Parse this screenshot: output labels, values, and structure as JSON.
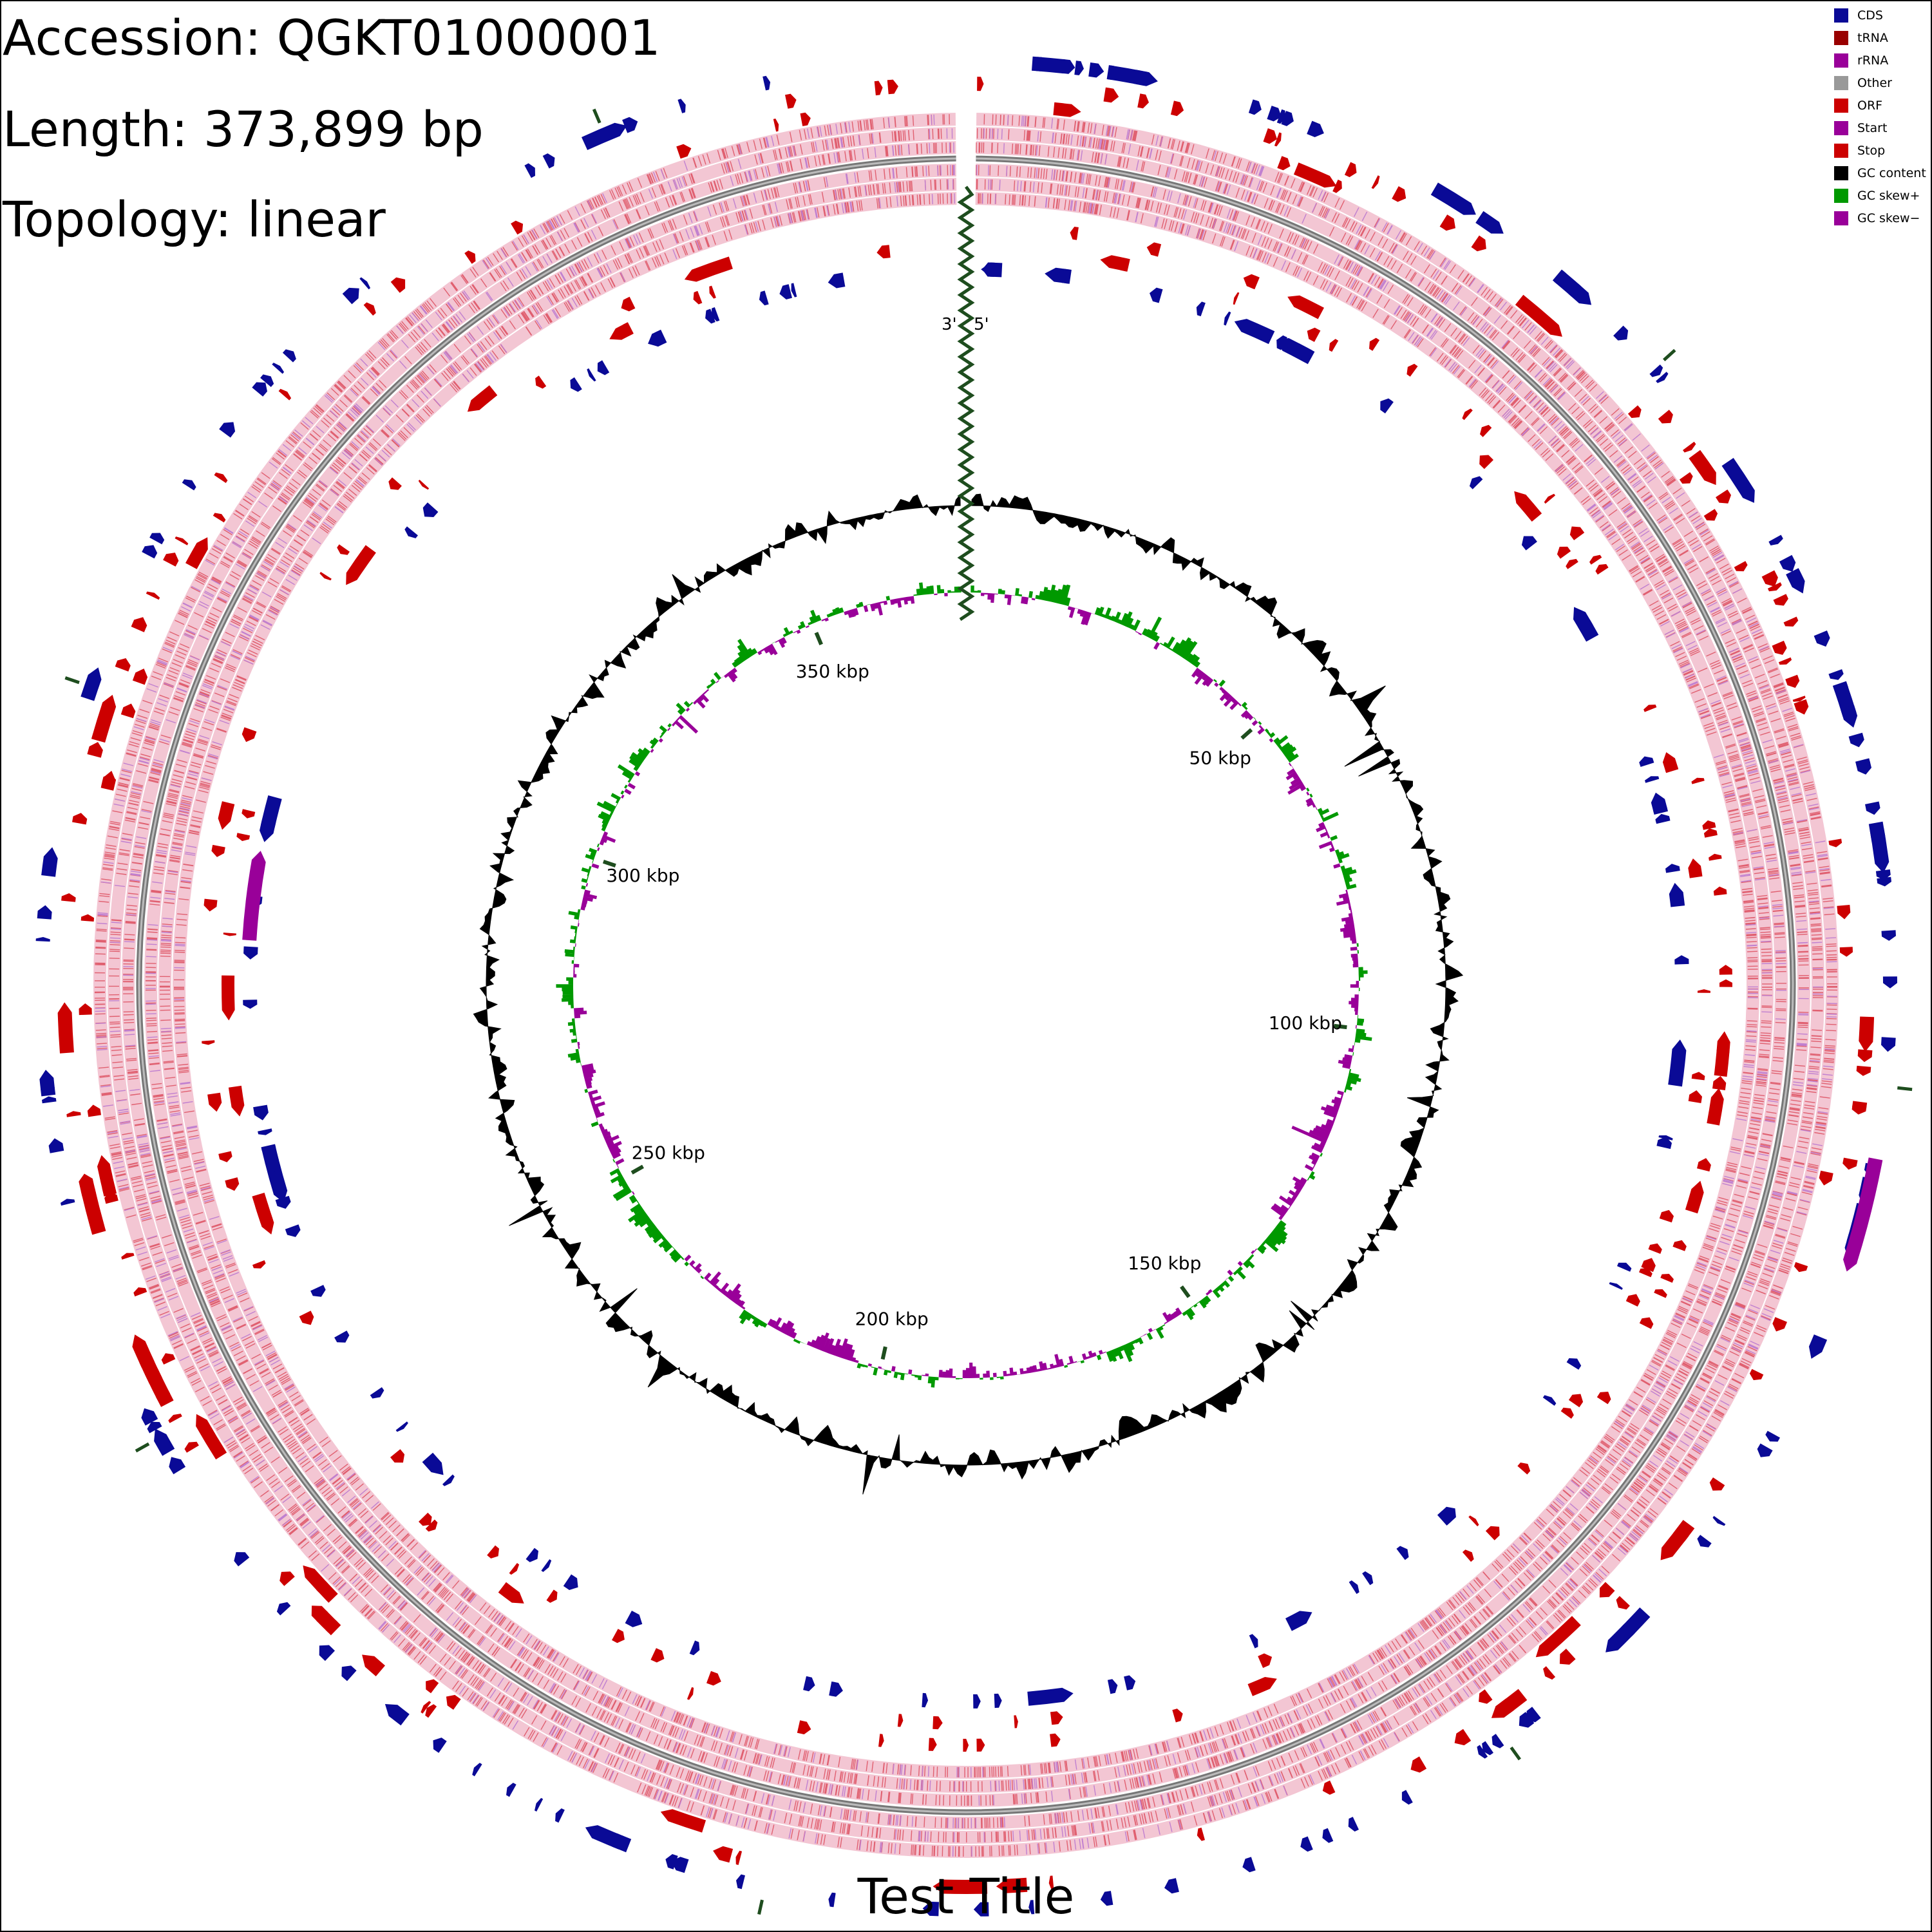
{
  "header": {
    "accession": "Accession: QGKT01000001",
    "length": "Length: 373,899 bp",
    "topology": "Topology: linear"
  },
  "title": "Test Title",
  "legend": [
    {
      "label": "CDS",
      "color": "#0a0a96"
    },
    {
      "label": "tRNA",
      "color": "#990000"
    },
    {
      "label": "rRNA",
      "color": "#990099"
    },
    {
      "label": "Other",
      "color": "#999999"
    },
    {
      "label": "ORF",
      "color": "#cc0000"
    },
    {
      "label": "Start",
      "color": "#990099"
    },
    {
      "label": "Stop",
      "color": "#cc0000"
    },
    {
      "label": "GC content",
      "color": "#000000"
    },
    {
      "label": "GC skew+",
      "color": "#009900"
    },
    {
      "label": "GC skew−",
      "color": "#990099"
    }
  ],
  "map": {
    "length_bp": 373899,
    "topology": "linear",
    "ticks": [
      {
        "pos": 50000,
        "label": "50 kbp"
      },
      {
        "pos": 100000,
        "label": "100 kbp"
      },
      {
        "pos": 150000,
        "label": "150 kbp"
      },
      {
        "pos": 200000,
        "label": "200 kbp"
      },
      {
        "pos": 250000,
        "label": "250 kbp"
      },
      {
        "pos": 300000,
        "label": "300 kbp"
      },
      {
        "pos": 350000,
        "label": "350 kbp"
      }
    ],
    "end_labels": {
      "start": "5'",
      "end": "3'"
    },
    "colors": {
      "cds": "#0a0a96",
      "orf": "#cc0000",
      "rrna": "#990099",
      "gc_content": "#000000",
      "gc_skew_pos": "#009900",
      "gc_skew_neg": "#990099",
      "start_stop_a": "#e06070",
      "start_stop_b": "#c080d0",
      "backbone": "#777777",
      "marker": "#1e4d1e"
    }
  }
}
